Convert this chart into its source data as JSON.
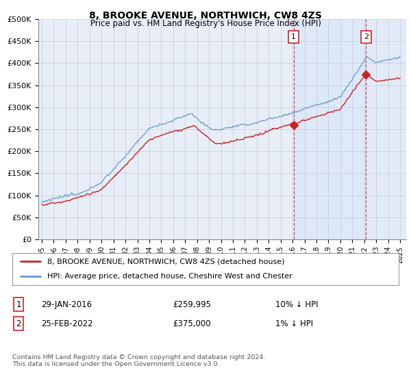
{
  "title": "8, BROOKE AVENUE, NORTHWICH, CW8 4ZS",
  "subtitle": "Price paid vs. HM Land Registry's House Price Index (HPI)",
  "ylabel_ticks": [
    "£0",
    "£50K",
    "£100K",
    "£150K",
    "£200K",
    "£250K",
    "£300K",
    "£350K",
    "£400K",
    "£450K",
    "£500K"
  ],
  "ylim": [
    0,
    500000
  ],
  "xlim_start": 1994.7,
  "xlim_end": 2025.5,
  "hpi_color": "#6699cc",
  "price_color": "#cc2222",
  "background_color": "#e8eef8",
  "highlight_color": "#dde8f8",
  "sale1_x": 2016.08,
  "sale1_y": 259995,
  "sale1_label": "1",
  "sale2_x": 2022.15,
  "sale2_y": 375000,
  "sale2_label": "2",
  "legend_line1": "8, BROOKE AVENUE, NORTHWICH, CW8 4ZS (detached house)",
  "legend_line2": "HPI: Average price, detached house, Cheshire West and Chester",
  "footer": "Contains HM Land Registry data © Crown copyright and database right 2024.\nThis data is licensed under the Open Government Licence v3.0.",
  "grid_color": "#c8c8d8",
  "vline_color": "#cc2222"
}
